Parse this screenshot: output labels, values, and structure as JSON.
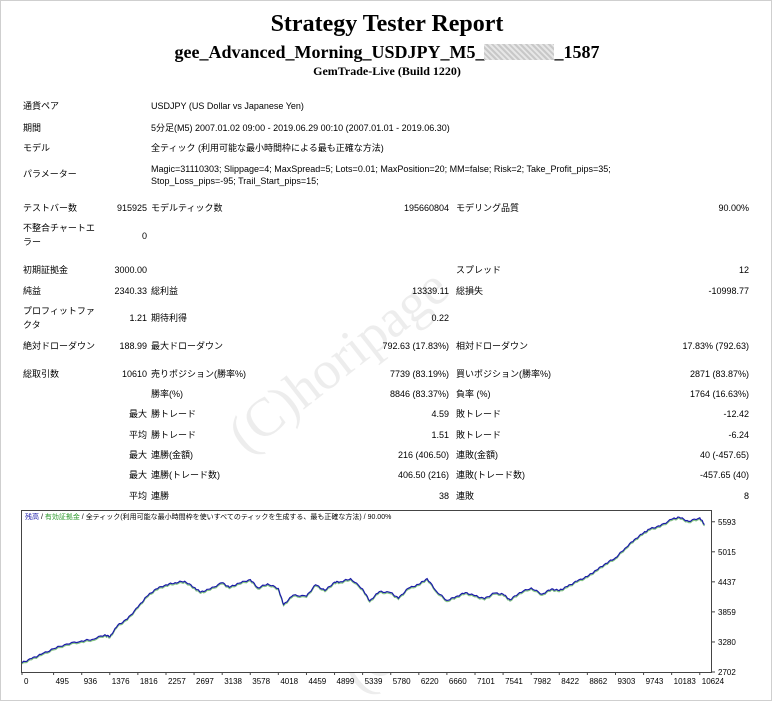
{
  "header": {
    "title": "Strategy Tester Report",
    "subtitle_prefix": "gee_Advanced_Morning_USDJPY_M5_",
    "subtitle_suffix": "_1587",
    "build": "GemTrade-Live (Build 1220)"
  },
  "info": {
    "symbol_label": "通貨ペア",
    "symbol_value": "USDJPY (US Dollar vs Japanese Yen)",
    "period_label": "期間",
    "period_value": "5分足(M5) 2007.01.02 09:00 - 2019.06.29 00:10 (2007.01.01 - 2019.06.30)",
    "model_label": "モデル",
    "model_value": "全ティック (利用可能な最小時間枠による最も正確な方法)",
    "params_label": "パラメーター",
    "params_line1": "Magic=31110303; Slippage=4; MaxSpread=5; Lots=0.01; MaxPosition=20; MM=false; Risk=2; Take_Profit_pips=35;",
    "params_line2": "Stop_Loss_pips=-95; Trail_Start_pips=15;"
  },
  "stats": {
    "bars_label": "テストバー数",
    "bars_value": "915925",
    "ticks_label": "モデルティック数",
    "ticks_value": "195660804",
    "quality_label": "モデリング品質",
    "quality_value": "90.00%",
    "mismatch_label1": "不整合チャートエ",
    "mismatch_label2": "ラー",
    "mismatch_value": "0",
    "deposit_label": "初期証拠金",
    "deposit_value": "3000.00",
    "spread_label": "スプレッド",
    "spread_value": "12",
    "net_label": "純益",
    "net_value": "2340.33",
    "gross_profit_label": "総利益",
    "gross_profit_value": "13339.11",
    "gross_loss_label": "総損失",
    "gross_loss_value": "-10998.77",
    "pf_label1": "プロフィットファ",
    "pf_label2": "クタ",
    "pf_value": "1.21",
    "payoff_label": "期待利得",
    "payoff_value": "0.22",
    "abs_dd_label": "絶対ドローダウン",
    "abs_dd_value": "188.99",
    "max_dd_label": "最大ドローダウン",
    "max_dd_value": "792.63 (17.83%)",
    "rel_dd_label": "相対ドローダウン",
    "rel_dd_value": "17.83% (792.63)",
    "trades_label": "総取引数",
    "trades_value": "10610",
    "short_label": "売りポジション(勝率%)",
    "short_value": "7739 (83.19%)",
    "long_label": "買いポジション(勝率%)",
    "long_value": "2871 (83.87%)",
    "win_label": "勝率(%)",
    "win_value": "8846 (83.37%)",
    "loss_label": "負率 (%)",
    "loss_value": "1764 (16.63%)",
    "max_label": "最大",
    "avg_label": "平均",
    "max_win_label": "勝トレード",
    "max_win_value": "4.59",
    "max_loss_label": "敗トレード",
    "max_loss_value": "-12.42",
    "avg_win_label": "勝トレード",
    "avg_win_value": "1.51",
    "avg_loss_label": "敗トレード",
    "avg_loss_value": "-6.24",
    "cons_wins_label": "連勝(金額)",
    "cons_wins_value": "216 (406.50)",
    "cons_losses_label": "連敗(金額)",
    "cons_losses_value": "40 (-457.65)",
    "cons_profit_label": "連勝(トレード数)",
    "cons_profit_value": "406.50 (216)",
    "cons_loss_label": "連敗(トレード数)",
    "cons_loss_value": "-457.65 (40)",
    "avg_cons_wins_label": "連勝",
    "avg_cons_wins_value": "38",
    "avg_cons_losses_label": "連敗",
    "avg_cons_losses_value": "8"
  },
  "chart_legend": {
    "balance": "残高",
    "sep1": " / ",
    "margin": "有効証拠金",
    "sep2": " / ",
    "desc": "全ティック(利用可能な最小時間枠を使いすべてのティックを生成する、最も正確な方法) / 90.00%"
  },
  "watermark": "(C)horipage",
  "colors": {
    "balance": "#1a1aa8",
    "margin": "#2e9a2e",
    "legend_balance": "#1a1aa8",
    "legend_margin": "#2e9a2e"
  },
  "chart_data": {
    "type": "line",
    "x_ticks": [
      "0",
      "495",
      "936",
      "1376",
      "1816",
      "2257",
      "2697",
      "3138",
      "3578",
      "4018",
      "4459",
      "4899",
      "5339",
      "5780",
      "6220",
      "6660",
      "7101",
      "7541",
      "7982",
      "8422",
      "8862",
      "9303",
      "9743",
      "10183",
      "10624"
    ],
    "y_ticks": [
      "5593",
      "5015",
      "4437",
      "3859",
      "3280",
      "2702"
    ],
    "xlim": [
      0,
      10800
    ],
    "ylim": [
      2702,
      5800
    ],
    "series": [
      {
        "x": [
          0,
          150,
          300,
          495,
          700,
          936,
          1100,
          1300,
          1376,
          1500,
          1650,
          1816,
          1950,
          2100,
          2257,
          2400,
          2550,
          2697,
          2800,
          2950,
          3138,
          3250,
          3400,
          3578,
          3700,
          3850,
          4018,
          4100,
          4250,
          4459,
          4600,
          4750,
          4899,
          5000,
          5150,
          5339,
          5450,
          5600,
          5780,
          5900,
          6050,
          6220,
          6350,
          6500,
          6660,
          6800,
          6950,
          7101,
          7250,
          7400,
          7541,
          7650,
          7800,
          7982,
          8150,
          8300,
          8422,
          8550,
          8700,
          8862,
          9000,
          9150,
          9303,
          9450,
          9600,
          9743,
          9850,
          10000,
          10183,
          10300,
          10450,
          10624,
          10700
        ],
        "y": [
          2880,
          2960,
          3040,
          3150,
          3240,
          3300,
          3330,
          3420,
          3380,
          3600,
          3720,
          3950,
          4150,
          4300,
          4380,
          4420,
          4450,
          4330,
          4240,
          4300,
          4420,
          4330,
          4410,
          4480,
          4320,
          4400,
          4310,
          4000,
          4180,
          4160,
          4380,
          4270,
          4430,
          4440,
          4500,
          4300,
          4070,
          4250,
          4230,
          4120,
          4310,
          4390,
          4500,
          4250,
          4080,
          4150,
          4230,
          4170,
          4110,
          4220,
          4200,
          4090,
          4230,
          4320,
          4200,
          4300,
          4270,
          4350,
          4450,
          4540,
          4660,
          4790,
          4900,
          5080,
          5250,
          5380,
          5460,
          5510,
          5640,
          5680,
          5600,
          5670,
          5540
        ]
      }
    ]
  }
}
